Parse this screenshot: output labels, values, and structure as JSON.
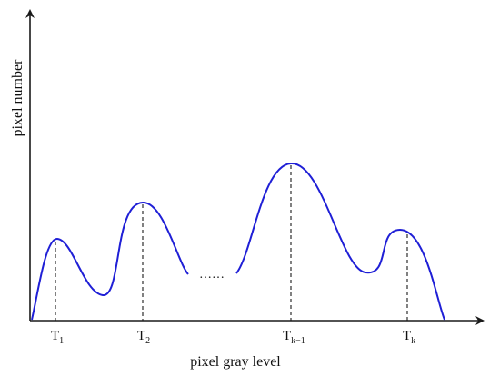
{
  "axes": {
    "x_label": "pixel gray level",
    "y_label": "pixel number",
    "axis_color": "#1a1a1a"
  },
  "curve": {
    "color": "#1f1fd6",
    "gap_marker": "……"
  },
  "thresholds": [
    {
      "main": "T",
      "sub": "1"
    },
    {
      "main": "T",
      "sub": "2"
    },
    {
      "main": "T",
      "sub": "k−1"
    },
    {
      "main": "T",
      "sub": "k"
    }
  ],
  "guide_style": "dashed"
}
